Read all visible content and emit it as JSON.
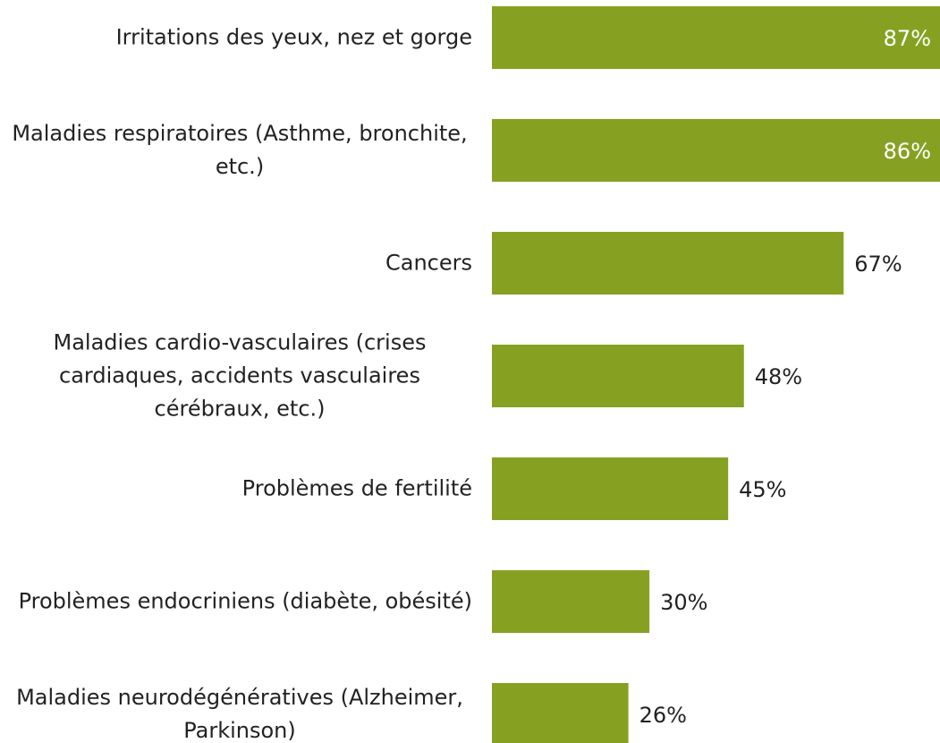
{
  "chart_data": {
    "type": "bar",
    "orientation": "horizontal",
    "categories": [
      "Irritations des yeux, nez et gorge",
      "Maladies respiratoires (Asthme, bronchite, etc.)",
      "Cancers",
      "Maladies cardio-vasculaires (crises cardiaques, accidents vasculaires cérébraux, etc.)",
      "Problèmes de fertilité",
      "Problèmes endocriniens (diabète, obésité)",
      "Maladies neurodégénératives (Alzheimer, Parkinson)"
    ],
    "values": [
      87,
      86,
      67,
      48,
      45,
      30,
      26
    ],
    "value_labels": [
      "87%",
      "86%",
      "67%",
      "48%",
      "45%",
      "30%",
      "26%"
    ],
    "color": "#86a122"
  }
}
